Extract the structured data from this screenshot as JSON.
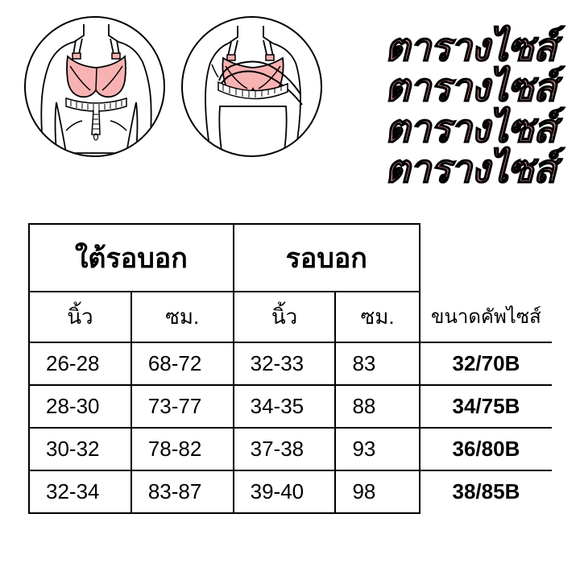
{
  "title_text": "ตารางไซส์",
  "title_repeat": 4,
  "colors": {
    "title_fill": "#f2a8a8",
    "title_stroke": "#000000",
    "bra_fill": "#f8b2b2",
    "line_stroke": "#000000",
    "background": "#ffffff",
    "border": "#000000"
  },
  "table": {
    "group_headers": [
      "ใต้รอบอก",
      "รอบอก"
    ],
    "sub_headers": [
      "นิ้ว",
      "ซม.",
      "นิ้ว",
      "ซม."
    ],
    "cup_header": "ขนาดคัพไซส์",
    "rows": [
      {
        "under_inch": "26-28",
        "under_cm": "68-72",
        "bust_inch": "32-33",
        "bust_cm": "83",
        "cup": "32/70B"
      },
      {
        "under_inch": "28-30",
        "under_cm": "73-77",
        "bust_inch": "34-35",
        "bust_cm": "88",
        "cup": "34/75B"
      },
      {
        "under_inch": "30-32",
        "under_cm": "78-82",
        "bust_inch": "37-38",
        "bust_cm": "93",
        "cup": "36/80B"
      },
      {
        "under_inch": "32-34",
        "under_cm": "83-87",
        "bust_inch": "39-40",
        "bust_cm": "98",
        "cup": "38/85B"
      }
    ]
  },
  "typography": {
    "title_fontsize": 48,
    "group_header_fontsize": 34,
    "sub_header_fontsize": 26,
    "cell_fontsize": 26,
    "cup_header_fontsize": 24
  }
}
